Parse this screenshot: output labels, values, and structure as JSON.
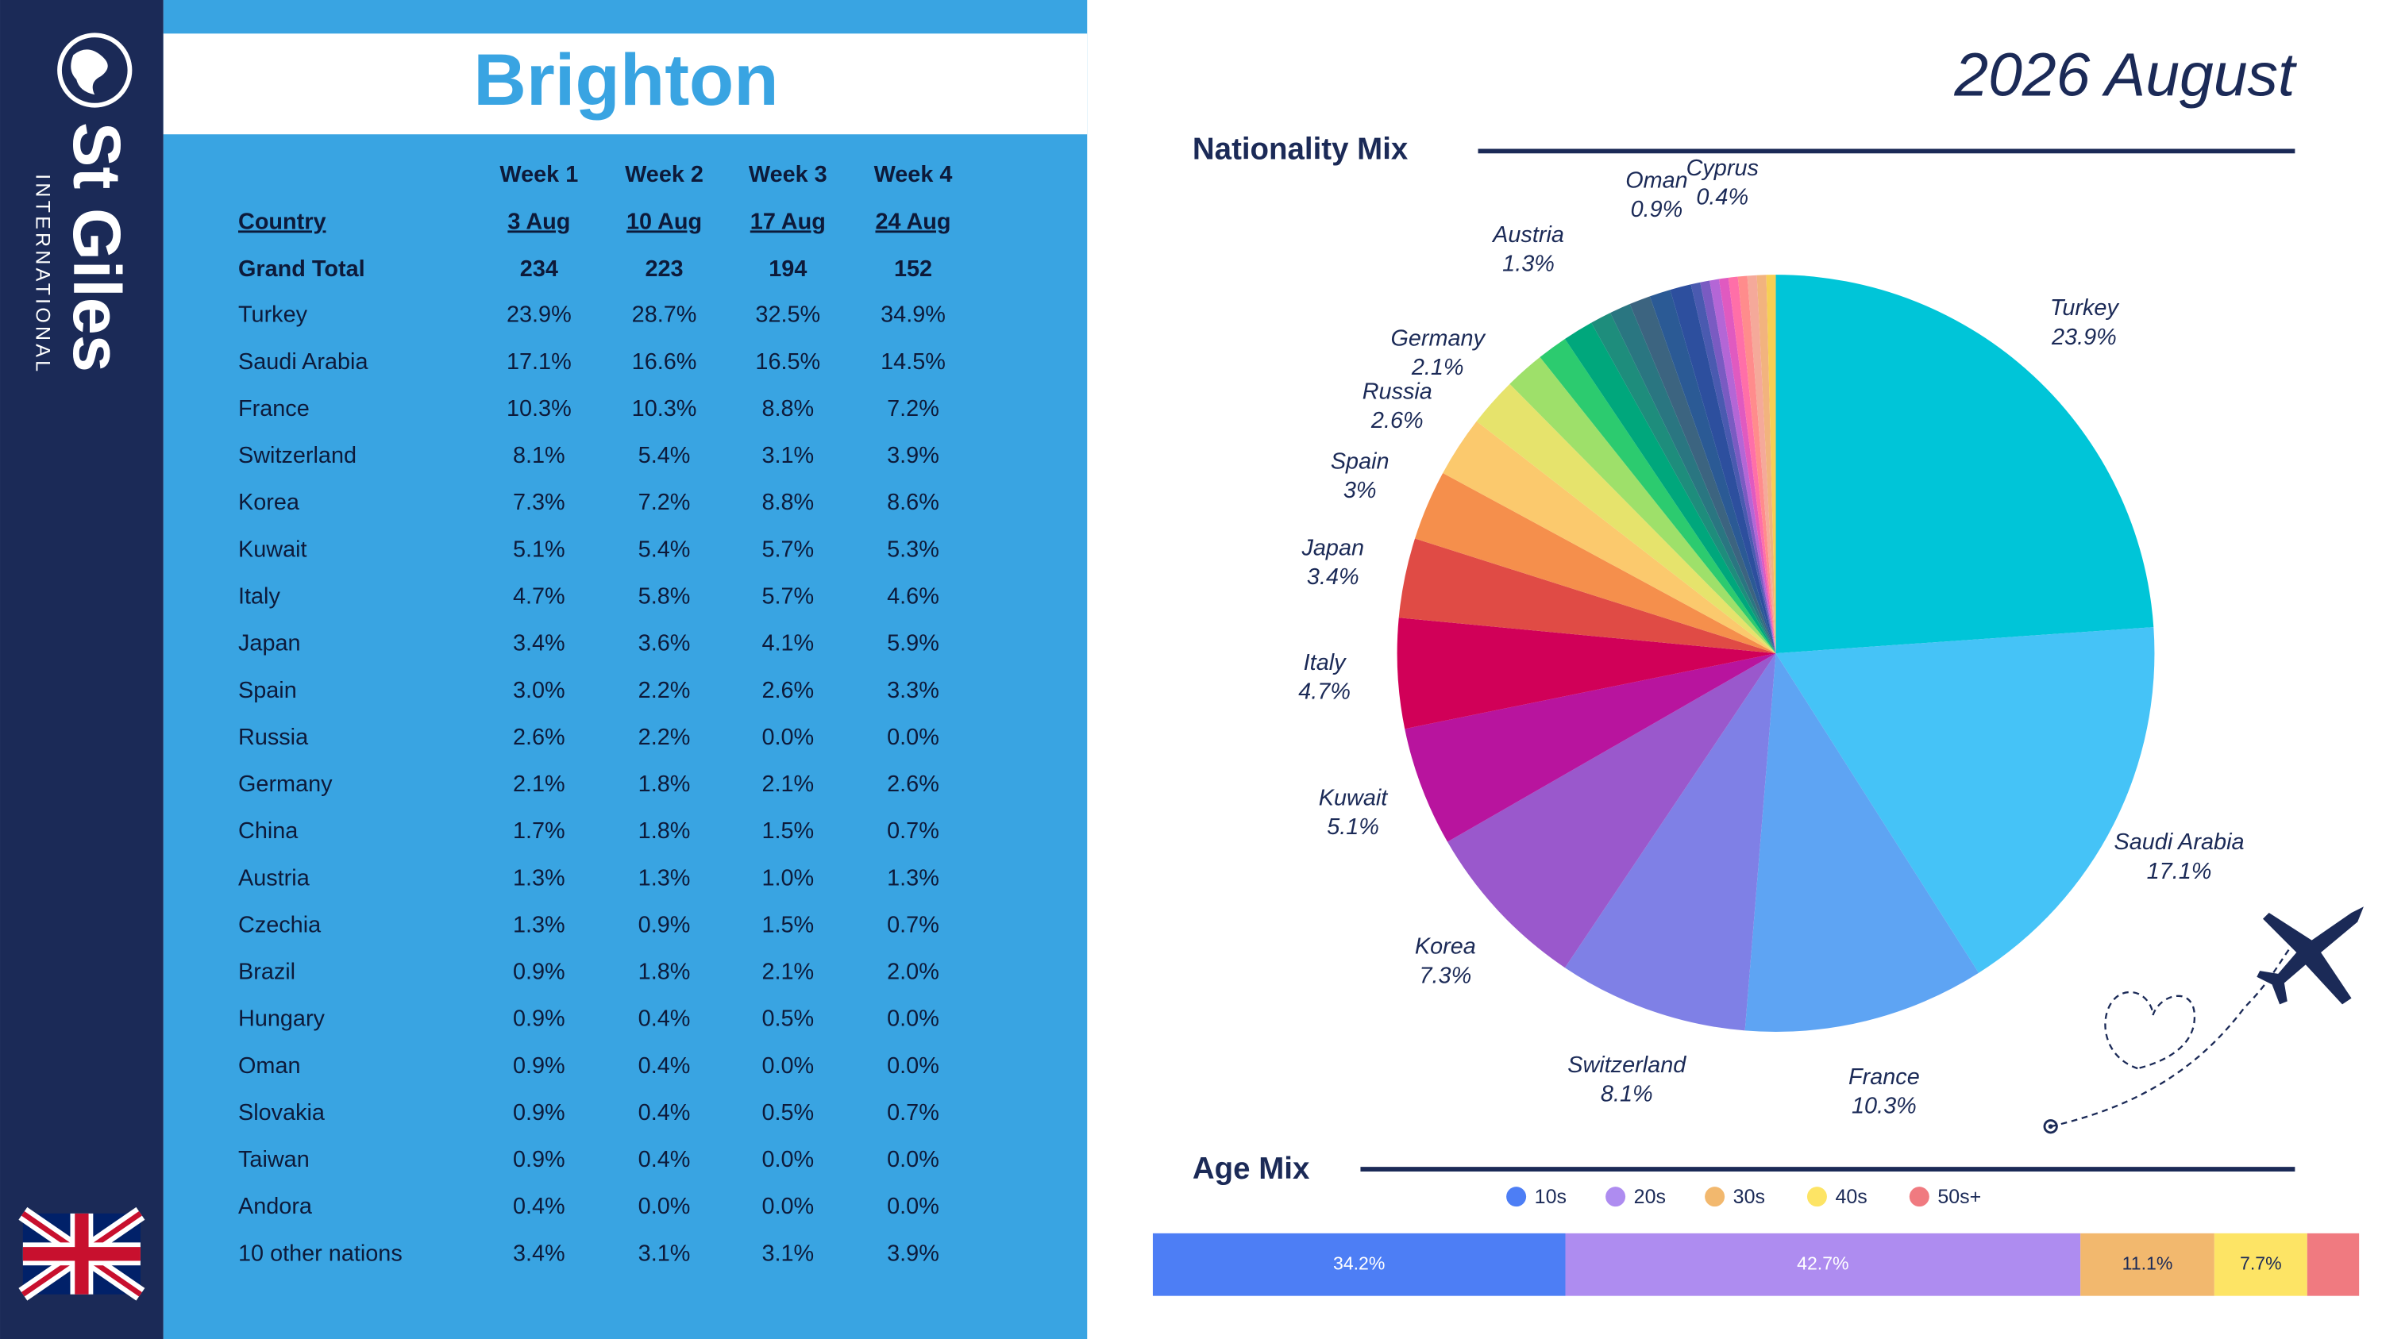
{
  "sidebar": {
    "brand": "St Giles",
    "subbrand": "INTERNATIONAL"
  },
  "header": {
    "title": "Brighton",
    "period": "2026 August"
  },
  "table": {
    "country_header": "Country",
    "weeks": [
      "Week 1",
      "Week 2",
      "Week 3",
      "Week 4"
    ],
    "dates": [
      "3 Aug",
      "10 Aug",
      "17 Aug",
      "24 Aug"
    ],
    "grand_total": {
      "label": "Grand Total",
      "values": [
        234,
        223,
        194,
        152
      ]
    },
    "rows": [
      [
        "Turkey",
        "23.9%",
        "28.7%",
        "32.5%",
        "34.9%"
      ],
      [
        "Saudi Arabia",
        "17.1%",
        "16.6%",
        "16.5%",
        "14.5%"
      ],
      [
        "France",
        "10.3%",
        "10.3%",
        "8.8%",
        "7.2%"
      ],
      [
        "Switzerland",
        "8.1%",
        "5.4%",
        "3.1%",
        "3.9%"
      ],
      [
        "Korea",
        "7.3%",
        "7.2%",
        "8.8%",
        "8.6%"
      ],
      [
        "Kuwait",
        "5.1%",
        "5.4%",
        "5.7%",
        "5.3%"
      ],
      [
        "Italy",
        "4.7%",
        "5.8%",
        "5.7%",
        "4.6%"
      ],
      [
        "Japan",
        "3.4%",
        "3.6%",
        "4.1%",
        "5.9%"
      ],
      [
        "Spain",
        "3.0%",
        "2.2%",
        "2.6%",
        "3.3%"
      ],
      [
        "Russia",
        "2.6%",
        "2.2%",
        "0.0%",
        "0.0%"
      ],
      [
        "Germany",
        "2.1%",
        "1.8%",
        "2.1%",
        "2.6%"
      ],
      [
        "China",
        "1.7%",
        "1.8%",
        "1.5%",
        "0.7%"
      ],
      [
        "Austria",
        "1.3%",
        "1.3%",
        "1.0%",
        "1.3%"
      ],
      [
        "Czechia",
        "1.3%",
        "0.9%",
        "1.5%",
        "0.7%"
      ],
      [
        "Brazil",
        "0.9%",
        "1.8%",
        "2.1%",
        "2.0%"
      ],
      [
        "Hungary",
        "0.9%",
        "0.4%",
        "0.5%",
        "0.0%"
      ],
      [
        "Oman",
        "0.9%",
        "0.4%",
        "0.0%",
        "0.0%"
      ],
      [
        "Slovakia",
        "0.9%",
        "0.4%",
        "0.5%",
        "0.7%"
      ],
      [
        "Taiwan",
        "0.9%",
        "0.4%",
        "0.0%",
        "0.0%"
      ],
      [
        "Andora",
        "0.4%",
        "0.0%",
        "0.0%",
        "0.0%"
      ],
      [
        "10 other nations",
        "3.4%",
        "3.1%",
        "3.1%",
        "3.9%"
      ]
    ]
  },
  "chart_data": [
    {
      "type": "pie",
      "title": "Nationality Mix",
      "categories": [
        "Turkey",
        "Saudi Arabia",
        "France",
        "Switzerland",
        "Korea",
        "Kuwait",
        "Italy",
        "Japan",
        "Spain",
        "Russia",
        "Germany",
        null,
        null,
        "Austria",
        null,
        null,
        null,
        null,
        "Oman",
        null,
        null,
        null,
        null,
        "Cyprus",
        null,
        null,
        null,
        null
      ],
      "values": [
        23.9,
        17.1,
        10.3,
        8.1,
        7.3,
        5.1,
        4.7,
        3.4,
        3,
        2.6,
        2.1,
        1.7,
        1.3,
        1.3,
        0.9,
        0.9,
        0.9,
        0.9,
        0.9,
        0.4,
        0.4,
        0.4,
        0.4,
        0.4,
        0.4,
        0.4,
        0.4,
        0.4
      ],
      "value_labels": [
        "23.9%",
        "17.1%",
        "10.3%",
        "8.1%",
        "7.3%",
        "5.1%",
        "4.7%",
        "3.4%",
        "3%",
        "2.6%",
        "2.1%",
        null,
        null,
        "1.3%",
        null,
        null,
        null,
        null,
        "0.9%",
        null,
        null,
        null,
        null,
        "0.4%",
        null,
        null,
        null,
        null
      ],
      "colors": [
        "#00c5d8",
        "#45c3f7",
        "#5ea4f3",
        "#7f80e6",
        "#9a58cc",
        "#b8149e",
        "#d10058",
        "#e04b45",
        "#f58f4c",
        "#fbc96d",
        "#e6e36c",
        "#9ee06a",
        "#2ccb6f",
        "#00a77c",
        "#1e8d7c",
        "#2a7681",
        "#3c6480",
        "#2b5a95",
        "#2d4f9e",
        "#4a5ab0",
        "#7a5bc2",
        "#b466d6",
        "#e05ac0",
        "#ff6fa8",
        "#ff8c8c",
        "#f5a99a",
        "#f2b37e",
        "#f7cf55"
      ]
    },
    {
      "type": "stacked_bar",
      "title": "Age Mix",
      "xlim": [
        0,
        100
      ],
      "series": [
        {
          "name": "10s",
          "color": "#4d7ef5",
          "values": [
            34.2
          ],
          "value_labels": [
            "34.2%"
          ]
        },
        {
          "name": "20s",
          "color": "#ae8cf0",
          "values": [
            42.7
          ],
          "value_labels": [
            "42.7%"
          ]
        },
        {
          "name": "30s",
          "color": "#f2b86e",
          "values": [
            11.1
          ],
          "value_labels": [
            "11.1%"
          ]
        },
        {
          "name": "40s",
          "color": "#fde465",
          "values": [
            7.7
          ],
          "value_labels": [
            "7.7%"
          ]
        },
        {
          "name": "50s+",
          "color": "#f07a80",
          "values": [
            4.3
          ]
        }
      ]
    }
  ]
}
